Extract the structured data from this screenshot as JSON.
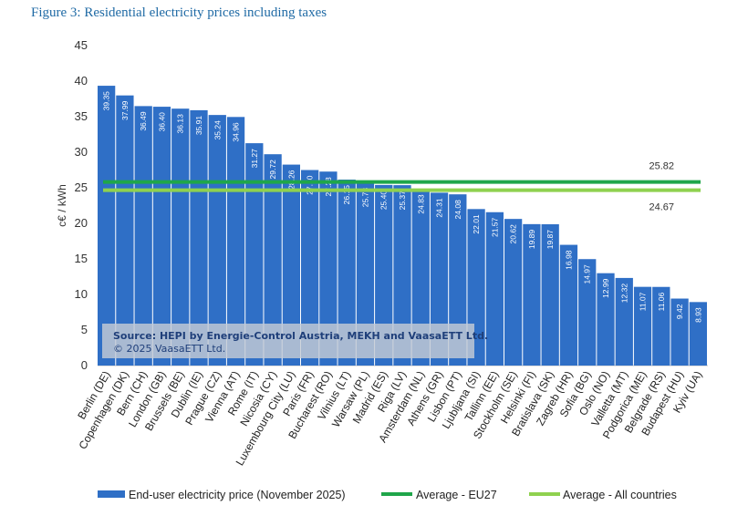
{
  "figure_title": "Figure 3: Residential electricity prices including taxes",
  "source_note": {
    "line1": "Source: HEPI by Energie-Control Austria, MEKH and VaasaETT Ltd.",
    "line2": "© 2025 VaasaETT Ltd."
  },
  "colors": {
    "bar": "#2f6fc6",
    "bar_label": "#ffffff",
    "avg_eu27": "#1fa64a",
    "avg_all": "#8fd14f",
    "title": "#1f6aa5"
  },
  "chart_data": {
    "type": "bar",
    "ylabel": "c€ / kWh",
    "ylim": [
      0,
      45
    ],
    "yticks": [
      0,
      5,
      10,
      15,
      20,
      25,
      30,
      35,
      40,
      45
    ],
    "grid": false,
    "legend_position": "bottom",
    "categories": [
      "Berlin (DE)",
      "Copenhagen (DK)",
      "Bern (CH)",
      "London (GB)",
      "Brussels (BE)",
      "Dublin (IE)",
      "Prague (CZ)",
      "Vienna (AT)",
      "Rome (IT)",
      "Nicosia (CY)",
      "Luxembourg City (LU)",
      "Paris (FR)",
      "Bucharest (RO)",
      "Vilnius (LT)",
      "Warsaw (PL)",
      "Madrid (ES)",
      "Riga (LV)",
      "Amsterdam (NL)",
      "Athens (GR)",
      "Lisbon (PT)",
      "Ljubljana (SI)",
      "Tallinn (EE)",
      "Stockholm (SE)",
      "Helsinki (FI)",
      "Bratislava (SK)",
      "Zagreb (HR)",
      "Sofia (BG)",
      "Oslo (NO)",
      "Valletta (MT)",
      "Podgorica (ME)",
      "Belgrade (RS)",
      "Budapest (HU)",
      "Kyiv (UA)"
    ],
    "series": [
      {
        "name": "End-user electricity price (November 2025)",
        "values": [
          39.35,
          37.99,
          36.49,
          36.4,
          36.13,
          35.91,
          35.24,
          34.96,
          31.27,
          29.72,
          28.26,
          27.5,
          27.28,
          26.15,
          25.78,
          25.4,
          25.37,
          24.83,
          24.31,
          24.08,
          22.01,
          21.57,
          20.62,
          19.89,
          19.87,
          16.98,
          14.97,
          12.99,
          12.32,
          11.07,
          11.06,
          9.42,
          8.93
        ],
        "value_labels": [
          "39.35",
          "37.99",
          "36.49",
          "36.40",
          "36.13",
          "35.91",
          "35.24",
          "34.96",
          "31.27",
          "29.72",
          "28.26",
          "27.50",
          "27.28",
          "26.15",
          "25.78",
          "25.40",
          "25.37",
          "24.83",
          "24.31",
          "24.08",
          "22.01",
          "21.57",
          "20.62",
          "19.89",
          "19.87",
          "16.98",
          "14.97",
          "12.99",
          "12.32",
          "11.07",
          "11.06",
          "9.42",
          "8.93"
        ]
      }
    ],
    "reference_lines": [
      {
        "name": "Average - EU27",
        "value": 25.82,
        "label": "25.82"
      },
      {
        "name": "Average - All countries",
        "value": 24.67,
        "label": "24.67"
      }
    ]
  }
}
